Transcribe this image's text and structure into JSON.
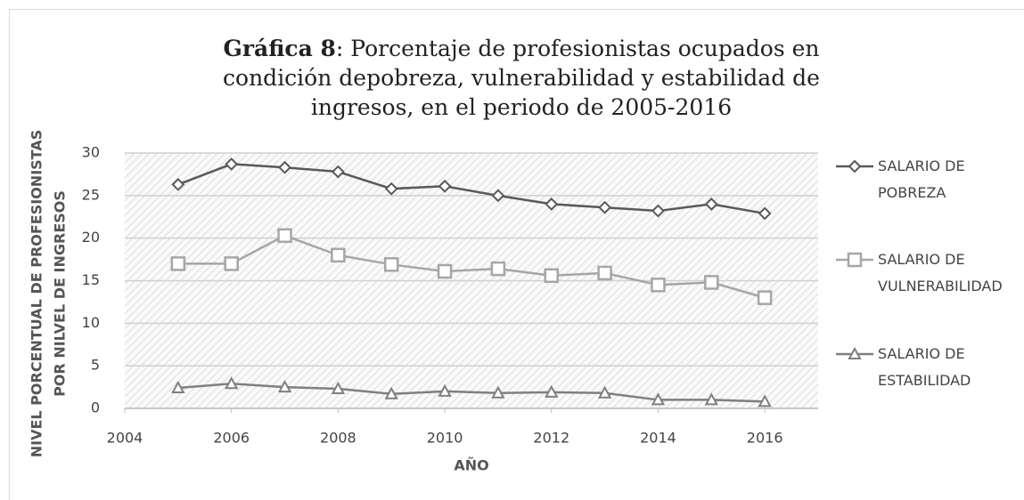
{
  "chart_data": {
    "type": "line",
    "title_prefix": "Gráfica 8",
    "title": ": Porcentaje de profesionistas ocupados en condición depobreza, vulnerabilidad y estabilidad de ingresos, en el periodo de 2005-2016",
    "y_label": [
      "NIVEL PORCENTUAL DE PROFESIONISTAS",
      "POR NILVEL DE INGRESOS"
    ],
    "x_label": "AÑO",
    "x": [
      2005,
      2006,
      2007,
      2008,
      2009,
      2010,
      2011,
      2012,
      2013,
      2014,
      2015,
      2016
    ],
    "series": [
      {
        "name": "SALARIO DE POBREZA",
        "color": "#595959",
        "marker": "diamond",
        "values": [
          26.3,
          28.7,
          28.3,
          27.8,
          25.8,
          26.1,
          25.0,
          24.0,
          23.6,
          23.2,
          24.0,
          22.9
        ]
      },
      {
        "name": "SALARIO DE VULNERABILIDAD",
        "color": "#a6a6a6",
        "marker": "square",
        "values": [
          17.0,
          17.0,
          20.3,
          18.0,
          16.9,
          16.1,
          16.4,
          15.6,
          15.9,
          14.5,
          14.8,
          13.0
        ]
      },
      {
        "name": "SALARIO DE ESTABILIDAD",
        "color": "#7f7f7f",
        "marker": "triangle",
        "values": [
          2.4,
          2.9,
          2.5,
          2.3,
          1.7,
          2.0,
          1.8,
          1.9,
          1.8,
          1.0,
          1.0,
          0.8
        ]
      }
    ],
    "xlim": [
      2004,
      2017
    ],
    "xticks": [
      2004,
      2006,
      2008,
      2010,
      2012,
      2014,
      2016
    ],
    "ylim": [
      0,
      30
    ],
    "yticks": [
      0,
      5,
      10,
      15,
      20,
      25,
      30
    ],
    "grid": true
  }
}
